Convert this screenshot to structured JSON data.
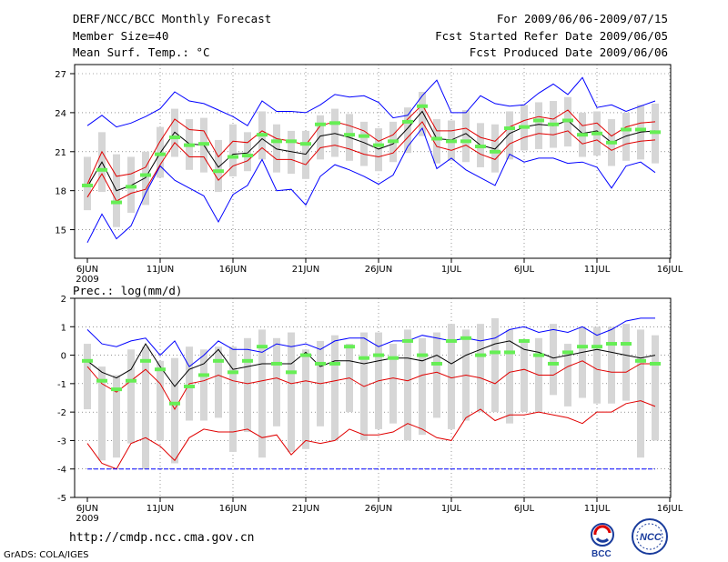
{
  "header": {
    "title": "DERF/NCC/BCC Monthly Forecast",
    "member_size": "Member Size=40",
    "variable": "Mean Surf. Temp.: °C",
    "period": "For 2009/06/06-2009/07/15",
    "refer_date": "Fcst Started Refer Date 2009/06/05",
    "produced_date": "Fcst Produced Date 2009/06/06"
  },
  "precip_label": "Prec.: log(mm/d)",
  "footer": {
    "url": "http://cmdp.ncc.cma.gov.cn",
    "grads": "GrADS: COLA/IGES",
    "logo_bcc": "BCC",
    "logo_ncc": "NCC"
  },
  "colors": {
    "max_min": "#0000ff",
    "spread": "#e00000",
    "mean": "#000000",
    "member": "#66ee55",
    "box": "#d6d6d6"
  },
  "chart_data": [
    {
      "type": "line",
      "title": "Mean Surf. Temp.: °C",
      "x_ticks": [
        "6JUN",
        "11JUN",
        "16JUN",
        "21JUN",
        "26JUN",
        "1JUL",
        "6JUL",
        "11JUL",
        "16JUL"
      ],
      "x_year": "2009",
      "y_ticks": [
        15,
        18,
        21,
        24,
        27
      ],
      "ylim": [
        12.8,
        27.7
      ],
      "grid": true,
      "series": [
        {
          "name": "max",
          "values": [
            14.0,
            16.2,
            14.3,
            15.3,
            17.8,
            19.9,
            18.8,
            18.2,
            17.6,
            15.6,
            17.7,
            18.4,
            20.4,
            18.0,
            18.1,
            16.9,
            19.1,
            20.0,
            19.6,
            19.1,
            18.5,
            19.2,
            21.4,
            22.8,
            19.7,
            20.5,
            19.6,
            19.0,
            18.4,
            20.8,
            20.2,
            20.5,
            20.5,
            20.1,
            20.2,
            19.8,
            18.2,
            19.9,
            20.2,
            19.4
          ]
        },
        {
          "name": "upper",
          "values": [
            18.5,
            21.0,
            19.1,
            19.3,
            19.8,
            21.8,
            23.5,
            22.7,
            22.6,
            20.6,
            21.8,
            21.7,
            22.6,
            22.0,
            21.8,
            21.5,
            23.0,
            23.3,
            23.0,
            22.6,
            21.8,
            22.3,
            23.5,
            24.6,
            22.6,
            22.6,
            22.8,
            22.1,
            21.8,
            22.9,
            23.4,
            23.7,
            23.5,
            24.2,
            23.0,
            23.2,
            22.2,
            22.9,
            23.2,
            23.3
          ]
        },
        {
          "name": "mean",
          "values": [
            18.3,
            20.2,
            18.0,
            18.4,
            19.0,
            20.9,
            22.5,
            21.6,
            21.5,
            19.8,
            20.8,
            20.9,
            22.0,
            21.2,
            21.0,
            20.8,
            22.2,
            22.4,
            22.1,
            21.7,
            21.2,
            21.6,
            22.8,
            24.1,
            22.0,
            21.9,
            22.4,
            21.5,
            21.2,
            22.4,
            22.9,
            23.1,
            23.0,
            23.4,
            22.4,
            22.6,
            21.7,
            22.2,
            22.5,
            22.6
          ]
        },
        {
          "name": "lower",
          "values": [
            17.5,
            19.3,
            17.2,
            17.8,
            18.1,
            20.0,
            21.7,
            20.6,
            20.6,
            18.8,
            19.9,
            20.3,
            21.3,
            20.4,
            20.4,
            20.0,
            21.3,
            21.5,
            21.2,
            20.8,
            20.6,
            20.9,
            22.1,
            23.3,
            21.4,
            21.1,
            21.5,
            20.8,
            20.4,
            21.6,
            22.1,
            22.4,
            22.3,
            22.6,
            21.6,
            21.9,
            21.1,
            21.6,
            21.8,
            21.9
          ]
        },
        {
          "name": "min",
          "values": [
            23.0,
            23.8,
            22.9,
            23.2,
            23.7,
            24.3,
            25.6,
            24.9,
            24.7,
            24.2,
            23.7,
            23.0,
            24.9,
            24.1,
            24.1,
            24.0,
            24.6,
            25.4,
            25.2,
            25.3,
            24.8,
            23.6,
            23.8,
            25.3,
            26.5,
            24.0,
            24.0,
            25.3,
            24.7,
            24.5,
            24.6,
            25.5,
            26.2,
            25.4,
            26.7,
            24.4,
            24.6,
            24.1,
            24.5,
            24.9
          ]
        }
      ],
      "boxes_low": [
        16.5,
        17.9,
        15.2,
        16.3,
        16.9,
        19.0,
        20.6,
        19.6,
        19.4,
        17.9,
        19.1,
        19.5,
        20.4,
        19.4,
        19.3,
        18.9,
        20.4,
        20.6,
        20.3,
        19.9,
        19.5,
        20.2,
        20.9,
        22.2,
        20.1,
        20.3,
        20.2,
        19.8,
        19.4,
        20.4,
        21.1,
        21.2,
        21.3,
        21.4,
        20.6,
        20.7,
        19.9,
        20.3,
        20.4,
        20.1
      ],
      "boxes_high": [
        20.6,
        22.5,
        20.8,
        20.6,
        21.0,
        22.9,
        24.3,
        23.5,
        23.6,
        21.9,
        23.1,
        22.5,
        24.1,
        23.1,
        22.6,
        22.6,
        23.8,
        24.3,
        23.9,
        23.3,
        22.8,
        23.3,
        24.4,
        25.6,
        23.5,
        23.4,
        24.2,
        23.2,
        23.1,
        24.1,
        24.6,
        24.8,
        24.9,
        25.2,
        24.0,
        24.1,
        23.5,
        24.0,
        24.6,
        24.7
      ],
      "member": [
        18.4,
        19.6,
        17.1,
        18.3,
        19.2,
        20.8,
        22.1,
        21.5,
        21.6,
        19.5,
        20.6,
        20.7,
        22.3,
        21.8,
        21.8,
        21.6,
        23.1,
        23.2,
        22.3,
        22.2,
        21.5,
        21.8,
        23.3,
        24.5,
        22.0,
        21.8,
        21.8,
        21.4,
        21.0,
        22.8,
        22.9,
        23.4,
        23.1,
        23.4,
        22.3,
        22.4,
        21.7,
        22.7,
        22.7,
        22.5
      ]
    },
    {
      "type": "line",
      "title": "Prec.: log(mm/d)",
      "x_ticks": [
        "6JUN",
        "11JUN",
        "16JUN",
        "21JUN",
        "26JUN",
        "1JUL",
        "6JUL",
        "11JUL",
        "16JUL"
      ],
      "x_year": "2009",
      "y_ticks": [
        -5,
        -4,
        -3,
        -2,
        -1,
        0,
        1,
        2
      ],
      "ylim": [
        -5,
        2
      ],
      "grid": true,
      "series": [
        {
          "name": "max",
          "values": [
            0.9,
            0.4,
            0.3,
            0.5,
            0.6,
            0.0,
            0.5,
            -0.4,
            0.0,
            0.5,
            0.2,
            0.2,
            0.1,
            0.4,
            0.3,
            0.4,
            0.2,
            0.5,
            0.6,
            0.6,
            0.3,
            0.5,
            0.5,
            0.7,
            0.6,
            0.5,
            0.6,
            0.5,
            0.6,
            0.9,
            1.0,
            0.8,
            0.9,
            0.8,
            1.0,
            0.7,
            0.9,
            1.2,
            1.3,
            1.3
          ]
        },
        {
          "name": "mean",
          "values": [
            -0.2,
            -0.6,
            -0.8,
            -0.5,
            0.4,
            -0.4,
            -1.1,
            -0.5,
            -0.3,
            0.2,
            -0.5,
            -0.4,
            -0.3,
            -0.3,
            -0.3,
            0.1,
            -0.4,
            -0.2,
            -0.2,
            -0.3,
            -0.2,
            -0.1,
            -0.1,
            -0.2,
            0.0,
            -0.3,
            0.0,
            0.2,
            0.4,
            0.5,
            0.2,
            0.1,
            -0.1,
            0.0,
            0.1,
            0.2,
            0.1,
            0.0,
            -0.1,
            0.0
          ]
        },
        {
          "name": "upper",
          "values": [
            -0.4,
            -1.0,
            -1.3,
            -0.9,
            -0.5,
            -1.0,
            -1.9,
            -1.0,
            -0.9,
            -0.7,
            -0.9,
            -1.0,
            -0.9,
            -0.8,
            -1.0,
            -0.9,
            -1.0,
            -0.9,
            -0.8,
            -1.1,
            -0.9,
            -0.8,
            -0.9,
            -0.7,
            -0.6,
            -0.8,
            -0.7,
            -0.8,
            -1.0,
            -0.6,
            -0.5,
            -0.7,
            -0.7,
            -0.4,
            -0.2,
            -0.5,
            -0.6,
            -0.6,
            -0.3,
            -0.3
          ]
        },
        {
          "name": "lower",
          "values": [
            -3.1,
            -3.8,
            -4.0,
            -3.1,
            -2.9,
            -3.2,
            -3.7,
            -2.9,
            -2.6,
            -2.7,
            -2.7,
            -2.6,
            -2.9,
            -2.8,
            -3.5,
            -3.0,
            -3.1,
            -3.0,
            -2.6,
            -2.8,
            -2.8,
            -2.7,
            -2.4,
            -2.6,
            -2.9,
            -3.0,
            -2.2,
            -1.9,
            -2.3,
            -2.1,
            -2.1,
            -2.0,
            -2.1,
            -2.2,
            -2.4,
            -2.0,
            -2.0,
            -1.7,
            -1.6,
            -1.8
          ]
        },
        {
          "name": "min",
          "values": [
            -4.0,
            -4.0,
            -4.0,
            -4.0,
            -4.0,
            -4.0,
            -4.0,
            -4.0,
            -4.0,
            -4.0,
            -4.0,
            -4.0,
            -4.0,
            -4.0,
            -4.0,
            -4.0,
            -4.0,
            -4.0,
            -4.0,
            -4.0,
            -4.0,
            -4.0,
            -4.0,
            -4.0,
            -4.0,
            -4.0,
            -4.0,
            -4.0,
            -4.0,
            -4.0,
            -4.0,
            -4.0,
            -4.0,
            -4.0,
            -4.0,
            -4.0,
            -4.0,
            -4.0,
            -4.0,
            -4.0
          ]
        }
      ],
      "boxes_low": [
        -1.9,
        -3.7,
        -3.6,
        -3.1,
        -4.0,
        -3.0,
        -3.8,
        -2.3,
        -2.3,
        -2.2,
        -3.4,
        -2.7,
        -3.6,
        -2.5,
        -3.4,
        -3.3,
        -2.5,
        -3.0,
        -2.0,
        -3.0,
        -2.6,
        -2.4,
        -3.0,
        -2.8,
        -2.2,
        -2.6,
        -2.3,
        -2.0,
        -2.0,
        -2.4,
        -2.0,
        -2.0,
        -1.4,
        -1.8,
        -1.5,
        -1.7,
        -1.7,
        -1.6,
        -3.6,
        -3.0
      ],
      "boxes_high": [
        0.4,
        -0.4,
        -0.7,
        0.2,
        0.3,
        -0.2,
        -0.1,
        0.3,
        0.2,
        0.3,
        0.3,
        0.6,
        0.9,
        0.6,
        0.8,
        0.2,
        0.5,
        0.7,
        0.4,
        0.8,
        0.8,
        0.4,
        0.9,
        0.6,
        0.8,
        1.1,
        0.9,
        1.1,
        1.3,
        0.9,
        0.5,
        0.6,
        1.1,
        0.4,
        1.0,
        1.0,
        1.0,
        1.1,
        0.9,
        0.7
      ],
      "member": [
        -0.2,
        -0.9,
        -1.2,
        -0.9,
        -0.2,
        -0.5,
        -1.7,
        -1.1,
        -0.7,
        -0.2,
        -0.6,
        -0.2,
        0.3,
        -0.3,
        -0.6,
        0.0,
        -0.3,
        -0.3,
        0.3,
        -0.1,
        0.0,
        -0.1,
        0.5,
        0.0,
        -0.3,
        0.5,
        0.6,
        0.0,
        0.1,
        0.1,
        0.5,
        0.0,
        -0.3,
        0.1,
        0.3,
        0.3,
        0.4,
        0.4,
        -0.2,
        -0.3
      ]
    }
  ]
}
